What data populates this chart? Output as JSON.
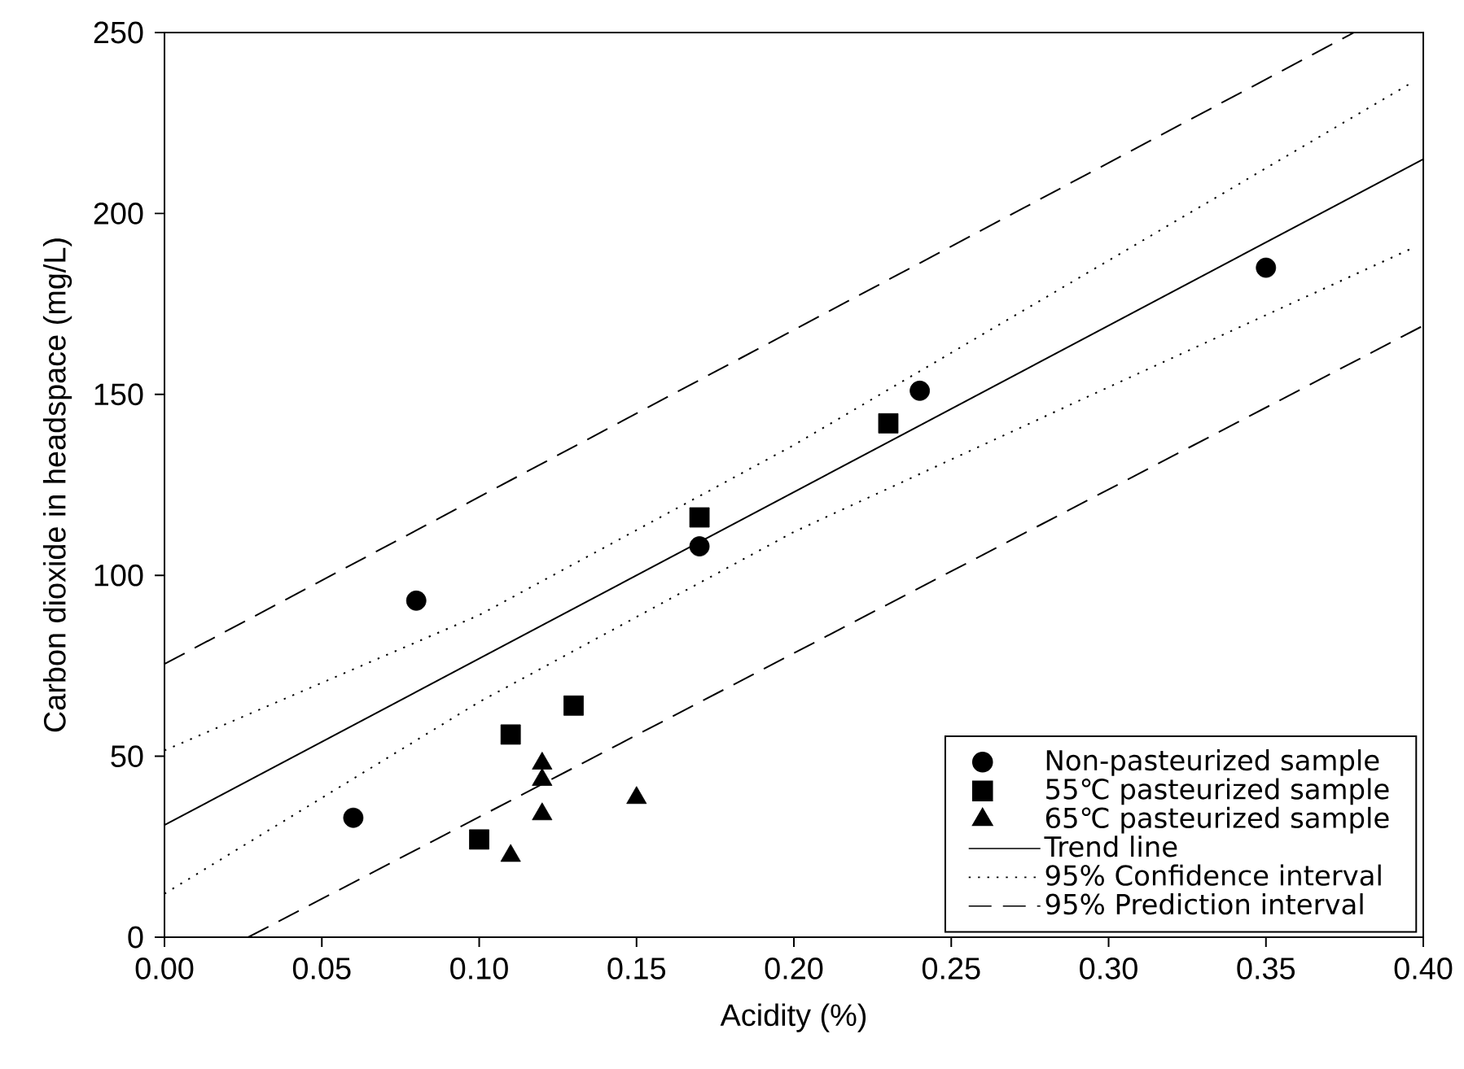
{
  "chart_data": {
    "type": "scatter",
    "xlabel": "Acidity (%)",
    "ylabel": "Carbon dioxide in headspace (mg/L)",
    "xlim": [
      0,
      0.4
    ],
    "ylim": [
      0,
      250
    ],
    "xticks": [
      {
        "value": 0,
        "label": "0.00"
      },
      {
        "value": 0.05,
        "label": "0.05"
      },
      {
        "value": 0.1,
        "label": "0.10"
      },
      {
        "value": 0.15,
        "label": "0.15"
      },
      {
        "value": 0.2,
        "label": "0.20"
      },
      {
        "value": 0.25,
        "label": "0.25"
      },
      {
        "value": 0.3,
        "label": "0.30"
      },
      {
        "value": 0.35,
        "label": "0.35"
      },
      {
        "value": 0.4,
        "label": "0.40"
      }
    ],
    "yticks": [
      0,
      50,
      100,
      150,
      200,
      250
    ],
    "grid": false,
    "legend": "bottom right",
    "series": [
      {
        "name": "Non-pasteurized sample",
        "marker": "circle",
        "color": "#000000",
        "x": [
          0.06,
          0.08,
          0.17,
          0.24,
          0.35
        ],
        "values": [
          33,
          93,
          108,
          151,
          185
        ]
      },
      {
        "name": "55℃ pasteurized sample",
        "marker": "square",
        "color": "#000000",
        "x": [
          0.1,
          0.11,
          0.13,
          0.17,
          0.23
        ],
        "values": [
          27,
          56,
          64,
          116,
          142
        ]
      },
      {
        "name": "65℃ pasteurized sample",
        "marker": "triangle",
        "color": "#000000",
        "x": [
          0.11,
          0.12,
          0.12,
          0.12,
          0.15
        ],
        "values": [
          22.5,
          48,
          43.5,
          34,
          38.5
        ]
      },
      {
        "name": "Trend line",
        "type": "line",
        "line_style": "solid",
        "color": "#000000",
        "x": [
          0,
          0.4
        ],
        "values": [
          31,
          215
        ]
      },
      {
        "name": "95% Confidence interval",
        "type": "line",
        "line_style": "dotted",
        "color": "#000000",
        "x": [
          0,
          0.1,
          0.2,
          0.3,
          0.397
        ],
        "values": [
          51.6,
          89,
          136,
          187,
          236.5
        ]
      },
      {
        "type": "line",
        "line_style": "dotted",
        "color": "#000000",
        "x": [
          0,
          0.1,
          0.2,
          0.3,
          0.397
        ],
        "values": [
          12,
          65,
          112,
          152,
          190.6
        ]
      },
      {
        "name": "95% Prediction interval",
        "type": "line",
        "line_style": "dashed",
        "color": "#000000",
        "x": [
          0,
          0.378
        ],
        "values": [
          75.5,
          250
        ]
      },
      {
        "type": "line",
        "line_style": "dashed",
        "color": "#000000",
        "x": [
          0.0266,
          0.4
        ],
        "values": [
          0,
          169
        ]
      }
    ]
  }
}
